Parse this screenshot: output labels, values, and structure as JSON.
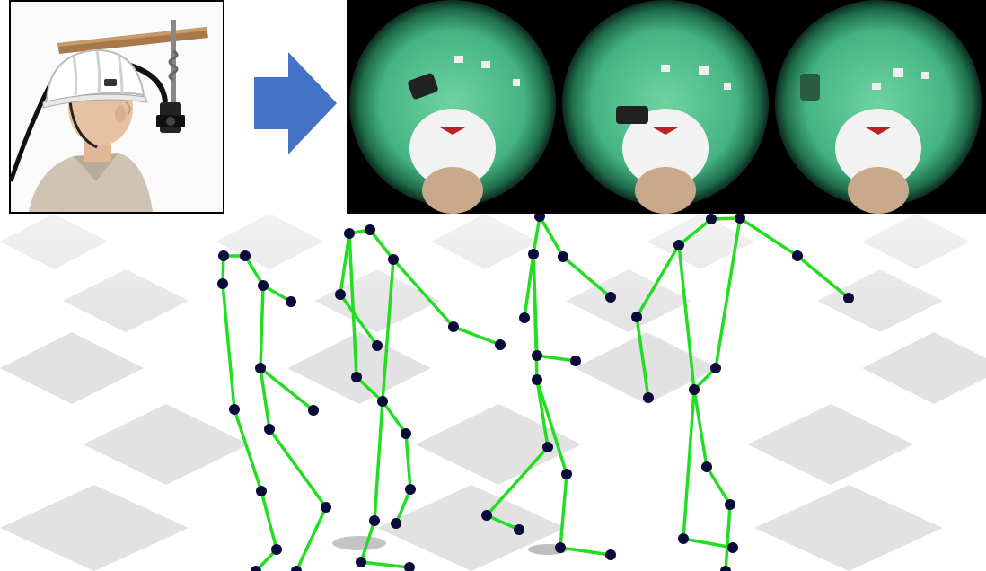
{
  "figure": {
    "panels": [
      {
        "name": "helmet-camera-rig-photo",
        "description_icon": "helmet-camera-icon"
      },
      {
        "name": "flow-arrow",
        "color": "#4472c4"
      },
      {
        "name": "fisheye-frames",
        "frames": 3,
        "frame_tint": "#3fae7a"
      },
      {
        "name": "skeleton-poses",
        "poses": 4,
        "bone_color": "#22dd22",
        "joint_color": "#0a0a3a"
      }
    ],
    "colors": {
      "floor_light": "#ffffff",
      "floor_dark": "#e2e2e2",
      "arrow": "#4472c4",
      "bone": "#22dd22",
      "joint": "#0b0b3b"
    }
  }
}
